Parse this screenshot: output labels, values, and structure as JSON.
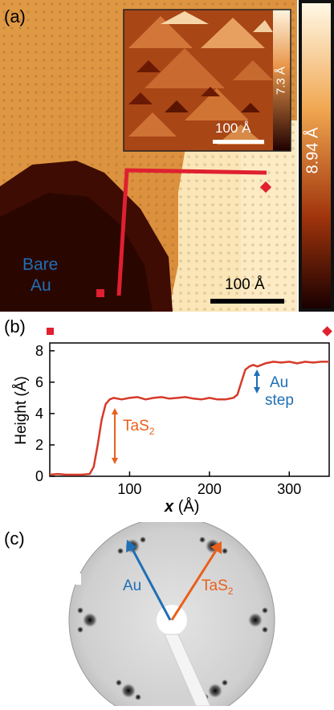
{
  "panel_a": {
    "label": "(a)",
    "bare_label_1": "Bare",
    "bare_label_2": "Au",
    "scalebar_label": "100 Å",
    "inset_scalebar_label": "100 Å",
    "inset_colorbar_label": "7.3 Å",
    "colorbar_label": "8.94 Å",
    "colors": {
      "high": "#fff4d8",
      "mid": "#d9832a",
      "low": "#3a0a00",
      "line": "#e02030"
    }
  },
  "panel_b": {
    "label": "(b)",
    "ylabel": "Height (Å)",
    "xlabel_var": "x",
    "xlabel_unit": "(Å)",
    "ann_tas2_base": "TaS",
    "ann_tas2_sub": "2",
    "ann_au_1": "Au",
    "ann_au_2": "step"
  },
  "panel_c": {
    "label": "(c)",
    "arrow_au": "Au",
    "arrow_tas2_base": "TaS",
    "arrow_tas2_sub": "2"
  },
  "chart_data": {
    "type": "line",
    "xlabel": "x (Å)",
    "ylabel": "Height (Å)",
    "xlim": [
      0,
      350
    ],
    "ylim": [
      0,
      8.5
    ],
    "x_ticks": [
      100,
      200,
      300
    ],
    "y_ticks": [
      0,
      2,
      4,
      6,
      8
    ],
    "grid": false,
    "series": [
      {
        "color": "#d63a2a",
        "x": [
          0,
          10,
          20,
          30,
          40,
          50,
          55,
          60,
          65,
          70,
          75,
          80,
          90,
          100,
          110,
          120,
          130,
          140,
          150,
          160,
          170,
          180,
          190,
          200,
          210,
          220,
          230,
          235,
          240,
          245,
          250,
          255,
          260,
          270,
          280,
          290,
          300,
          310,
          320,
          330,
          340,
          350
        ],
        "y": [
          0.1,
          0.15,
          0.1,
          0.1,
          0.1,
          0.15,
          0.6,
          2.0,
          3.6,
          4.6,
          4.9,
          5.0,
          4.9,
          5.0,
          5.05,
          4.9,
          5.0,
          5.05,
          4.95,
          5.0,
          5.05,
          4.95,
          4.9,
          5.0,
          4.9,
          4.9,
          5.0,
          5.2,
          6.0,
          6.8,
          7.0,
          7.1,
          7.0,
          7.2,
          7.3,
          7.25,
          7.3,
          7.2,
          7.3,
          7.25,
          7.3,
          7.3
        ]
      }
    ]
  }
}
